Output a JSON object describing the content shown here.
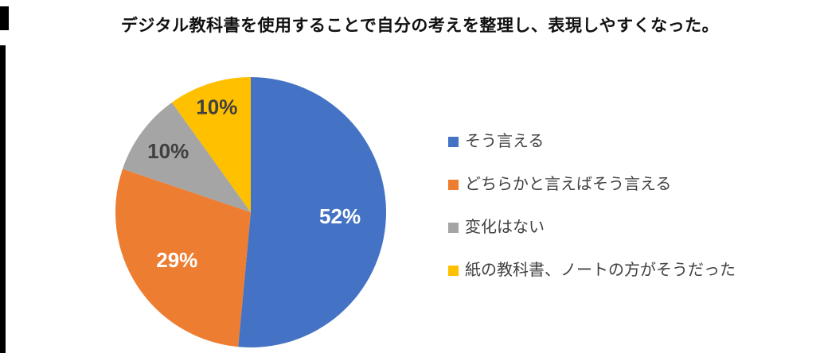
{
  "chart_data": {
    "type": "pie",
    "title": "デジタル教科書を使用することで自分の考えを整理し、表現しやすくなった。",
    "start_angle_deg": 0,
    "direction": "clockwise",
    "legend_position": "right",
    "slices": [
      {
        "label": "そう言える",
        "value": 52,
        "pct_label": "52%",
        "color": "#4472C4",
        "pct_label_color": "#FFFFFF",
        "label_radius": 0.66
      },
      {
        "label": "どちらかと言えばそう言える",
        "value": 29,
        "pct_label": "29%",
        "color": "#ED7D31",
        "pct_label_color": "#FFFFFF",
        "label_radius": 0.65
      },
      {
        "label": "変化はない",
        "value": 10,
        "pct_label": "10%",
        "color": "#A5A5A5",
        "pct_label_color": "#404040",
        "label_radius": 0.76
      },
      {
        "label": "紙の教科書、ノートの方がそうだった",
        "value": 10,
        "pct_label": "10%",
        "color": "#FFC000",
        "pct_label_color": "#404040",
        "label_radius": 0.82
      }
    ]
  }
}
